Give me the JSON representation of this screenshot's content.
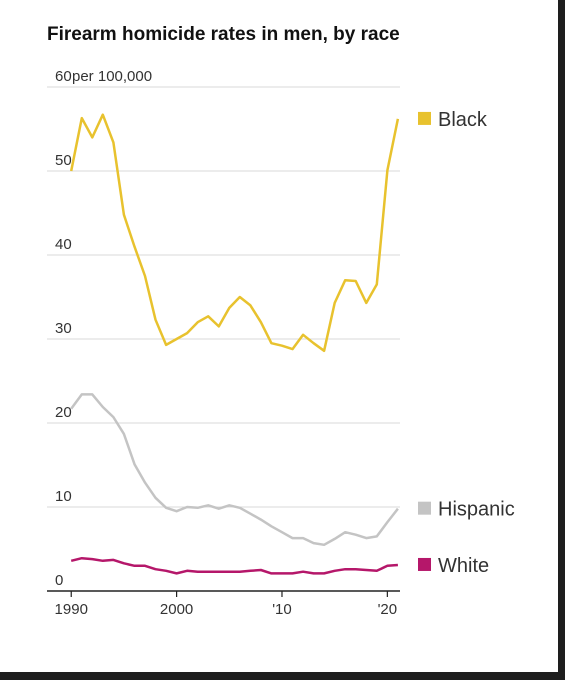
{
  "chart_data": {
    "type": "line",
    "title": "Firearm homicide rates in men, by race",
    "y_unit": "per 100,000",
    "x": [
      1990,
      1991,
      1992,
      1993,
      1994,
      1995,
      1996,
      1997,
      1998,
      1999,
      2000,
      2001,
      2002,
      2003,
      2004,
      2005,
      2006,
      2007,
      2008,
      2009,
      2010,
      2011,
      2012,
      2013,
      2014,
      2015,
      2016,
      2017,
      2018,
      2019,
      2020,
      2021
    ],
    "series": [
      {
        "name": "Black",
        "color": "#e8c22e",
        "values": [
          50.0,
          56.3,
          54.0,
          56.7,
          53.4,
          44.8,
          41.0,
          37.5,
          32.3,
          29.3,
          30.0,
          30.7,
          32.0,
          32.7,
          31.5,
          33.7,
          35.0,
          34.0,
          32.0,
          29.5,
          29.2,
          28.8,
          30.5,
          29.5,
          28.6,
          34.3,
          37.0,
          36.9,
          34.3,
          36.5,
          50.1,
          56.2
        ]
      },
      {
        "name": "Hispanic",
        "color": "#c4c4c4",
        "values": [
          21.7,
          23.4,
          23.4,
          21.9,
          20.7,
          18.7,
          15.1,
          12.9,
          11.1,
          9.9,
          9.5,
          10.0,
          9.9,
          10.2,
          9.8,
          10.2,
          9.9,
          9.2,
          8.5,
          7.7,
          7.0,
          6.3,
          6.3,
          5.7,
          5.5,
          6.2,
          7.0,
          6.7,
          6.3,
          6.5,
          8.2,
          9.8
        ]
      },
      {
        "name": "White",
        "color": "#b5176a",
        "values": [
          3.6,
          3.9,
          3.8,
          3.6,
          3.7,
          3.3,
          3.0,
          3.0,
          2.6,
          2.4,
          2.1,
          2.4,
          2.3,
          2.3,
          2.3,
          2.3,
          2.3,
          2.4,
          2.5,
          2.1,
          2.1,
          2.1,
          2.3,
          2.1,
          2.1,
          2.4,
          2.6,
          2.6,
          2.5,
          2.4,
          3.0,
          3.1
        ]
      }
    ],
    "xlim": [
      1987.7,
      2021.2
    ],
    "xticks": [
      1990,
      2000,
      {
        "value": 2010,
        "label": "'10"
      },
      {
        "value": 2020,
        "label": "'20"
      }
    ],
    "ylim": [
      0,
      60
    ],
    "yticks": [
      0,
      10,
      20,
      30,
      40,
      50,
      60
    ],
    "grid": true
  }
}
